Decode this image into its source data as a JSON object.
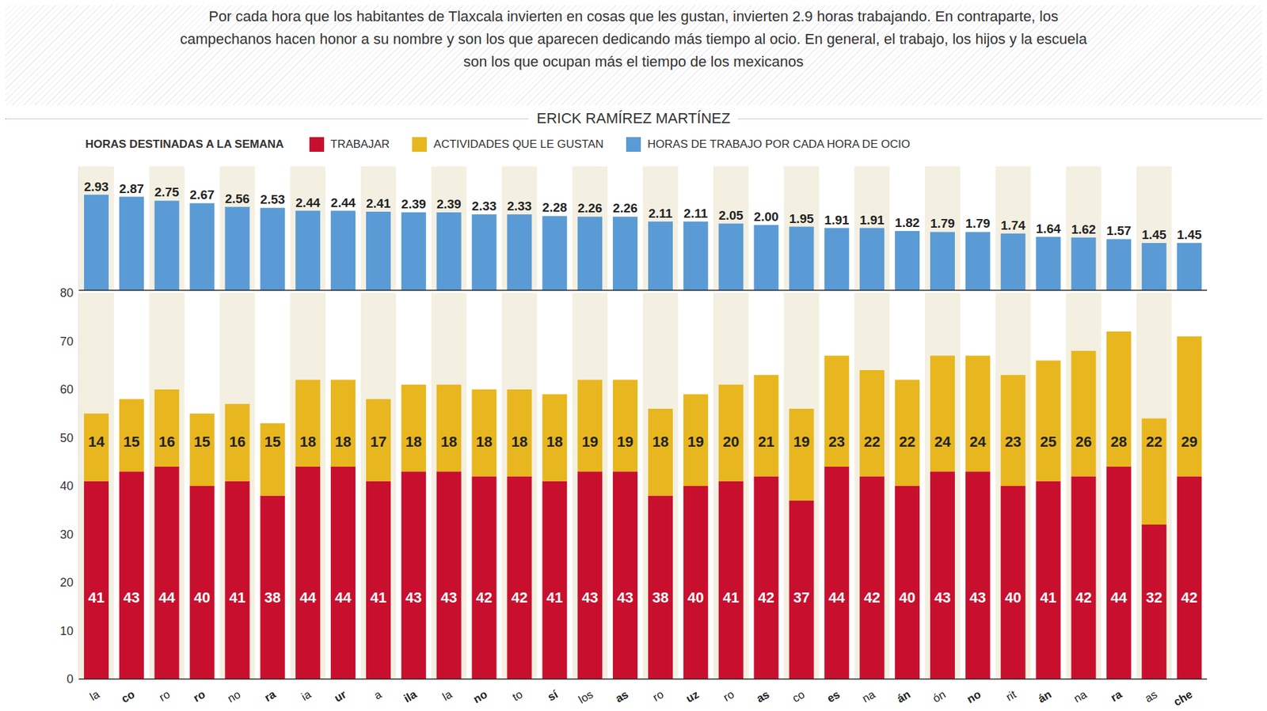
{
  "chart_data": [
    {
      "type": "bar",
      "subtitle": "Por cada hora que los habitantes de Tlaxcala invierten en cosas que les gustan, invierten 2.9 horas trabajando. En contraparte, los campechanos hacen honor a su nombre y son los que aparecen dedicando más tiempo al ocio. En general, el trabajo, los hijos y la escuela son los que ocupan más el tiempo de los mexicanos",
      "author": "ERICK RAMÍREZ MARTÍNEZ",
      "legend_title": "HORAS DESTINADAS A LA SEMANA",
      "legend": "top",
      "categories": [
        "la",
        "co",
        "ro",
        "ro",
        "no",
        "ra",
        "ia",
        "ur",
        "a",
        "ila",
        "la",
        "no",
        "to",
        "sí",
        "los",
        "as",
        "ro",
        "uz",
        "ro",
        "as",
        "co",
        "es",
        "na",
        "án",
        "ón",
        "no",
        "rit",
        "án",
        "na",
        "ra",
        "as",
        "che"
      ],
      "series": [
        {
          "name": "TRABAJAR",
          "color": "#c8102e",
          "values": [
            41,
            43,
            44,
            40,
            41,
            38,
            44,
            44,
            41,
            43,
            43,
            42,
            42,
            41,
            43,
            43,
            38,
            40,
            41,
            42,
            37,
            44,
            42,
            40,
            43,
            43,
            40,
            41,
            42,
            44,
            32,
            42
          ]
        },
        {
          "name": "ACTIVIDADES QUE LE GUSTAN",
          "color": "#e8b61e",
          "values": [
            14,
            15,
            16,
            15,
            16,
            15,
            18,
            18,
            17,
            18,
            18,
            18,
            18,
            18,
            19,
            19,
            18,
            19,
            20,
            21,
            19,
            23,
            22,
            22,
            24,
            24,
            23,
            25,
            26,
            28,
            22,
            29
          ]
        }
      ],
      "stacked": true,
      "data_labels": true,
      "ylim": [
        0,
        80
      ],
      "yticks": [
        0,
        10,
        20,
        30,
        40,
        50,
        60,
        70,
        80
      ],
      "grid": false
    },
    {
      "type": "bar",
      "series": [
        {
          "name": "HORAS DE TRABAJO POR CADA HORA DE OCIO",
          "color": "#5b9bd5",
          "values": [
            2.93,
            2.87,
            2.75,
            2.67,
            2.56,
            2.53,
            2.44,
            2.44,
            2.41,
            2.39,
            2.39,
            2.33,
            2.33,
            2.28,
            2.26,
            2.26,
            2.11,
            2.11,
            2.05,
            2.0,
            1.95,
            1.91,
            1.91,
            1.82,
            1.79,
            1.79,
            1.74,
            1.64,
            1.62,
            1.57,
            1.45,
            1.45
          ],
          "value_labels": [
            "2.93",
            "2.87",
            "2.75",
            "2.67",
            "2.56",
            "2.53",
            "2.44",
            "2.44",
            "2.41",
            "2.39",
            "2.39",
            "2.33",
            "2.33",
            "2.28",
            "2.26",
            "2.26",
            "2.11",
            "2.11",
            "2.05",
            "2.00",
            "1.95",
            "1.91",
            "1.91",
            "1.82",
            "1.79",
            "1.79",
            "1.74",
            "1.64",
            "1.62",
            "1.57",
            "1.45",
            "1.45"
          ]
        }
      ],
      "data_labels": true,
      "tick_labels": false,
      "ylim": [
        0,
        3.8
      ],
      "yticks": [],
      "grid": false
    }
  ]
}
